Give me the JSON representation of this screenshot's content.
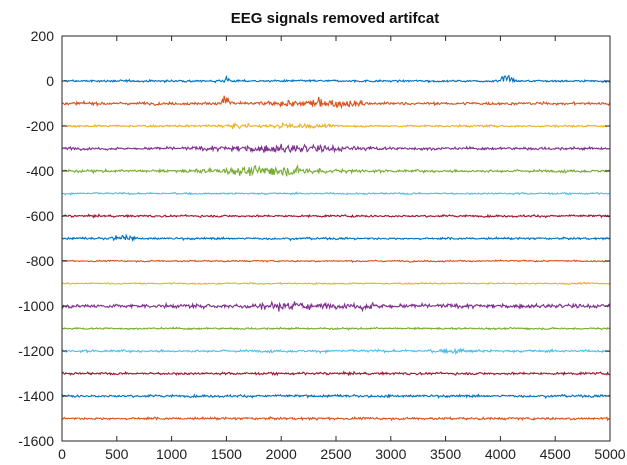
{
  "chart_data": {
    "type": "line",
    "title": "EEG signals removed artifcat",
    "xlabel": "",
    "ylabel": "",
    "xlim": [
      0,
      5000
    ],
    "ylim": [
      -1600,
      200
    ],
    "xticks": [
      0,
      500,
      1000,
      1500,
      2000,
      2500,
      3000,
      3500,
      4000,
      4500,
      5000
    ],
    "yticks": [
      200,
      0,
      -200,
      -400,
      -600,
      -800,
      -1000,
      -1200,
      -1400,
      -1600
    ],
    "grid": false,
    "legend": "none",
    "series": [
      {
        "offset": 0,
        "color": "#0072BD",
        "noise": 3,
        "bursts": [
          {
            "center": 1500,
            "width": 30,
            "amp": 10
          },
          {
            "center": 4050,
            "width": 60,
            "amp": 14
          }
        ]
      },
      {
        "offset": -100,
        "color": "#D95319",
        "noise": 4,
        "bursts": [
          {
            "center": 1500,
            "width": 40,
            "amp": 18
          },
          {
            "center": 2350,
            "width": 380,
            "amp": 11
          }
        ]
      },
      {
        "offset": -200,
        "color": "#EDB120",
        "noise": 3,
        "bursts": [
          {
            "center": 1600,
            "width": 120,
            "amp": 6
          },
          {
            "center": 2100,
            "width": 220,
            "amp": 6
          }
        ]
      },
      {
        "offset": -300,
        "color": "#7E2F8E",
        "noise": 4,
        "bursts": [
          {
            "center": 2050,
            "width": 600,
            "amp": 9
          }
        ]
      },
      {
        "offset": -400,
        "color": "#77AC30",
        "noise": 4,
        "bursts": [
          {
            "center": 1900,
            "width": 480,
            "amp": 12
          }
        ]
      },
      {
        "offset": -500,
        "color": "#4DBEEE",
        "noise": 2.5,
        "bursts": []
      },
      {
        "offset": -600,
        "color": "#A2142F",
        "noise": 3,
        "bursts": []
      },
      {
        "offset": -700,
        "color": "#0072BD",
        "noise": 3,
        "bursts": [
          {
            "center": 550,
            "width": 90,
            "amp": 8
          }
        ]
      },
      {
        "offset": -800,
        "color": "#D95319",
        "noise": 2,
        "bursts": []
      },
      {
        "offset": -900,
        "color": "#EDB120",
        "noise": 2,
        "bursts": []
      },
      {
        "offset": -1000,
        "color": "#7E2F8E",
        "noise": 6,
        "bursts": [
          {
            "center": 2050,
            "width": 300,
            "amp": 8
          },
          {
            "center": 2800,
            "width": 200,
            "amp": 6
          }
        ]
      },
      {
        "offset": -1100,
        "color": "#77AC30",
        "noise": 2.5,
        "bursts": []
      },
      {
        "offset": -1200,
        "color": "#4DBEEE",
        "noise": 3.5,
        "bursts": [
          {
            "center": 3600,
            "width": 150,
            "amp": 5
          }
        ]
      },
      {
        "offset": -1300,
        "color": "#A2142F",
        "noise": 3.5,
        "bursts": []
      },
      {
        "offset": -1400,
        "color": "#0072BD",
        "noise": 3.5,
        "bursts": []
      },
      {
        "offset": -1500,
        "color": "#D95319",
        "noise": 3.5,
        "bursts": []
      }
    ]
  }
}
